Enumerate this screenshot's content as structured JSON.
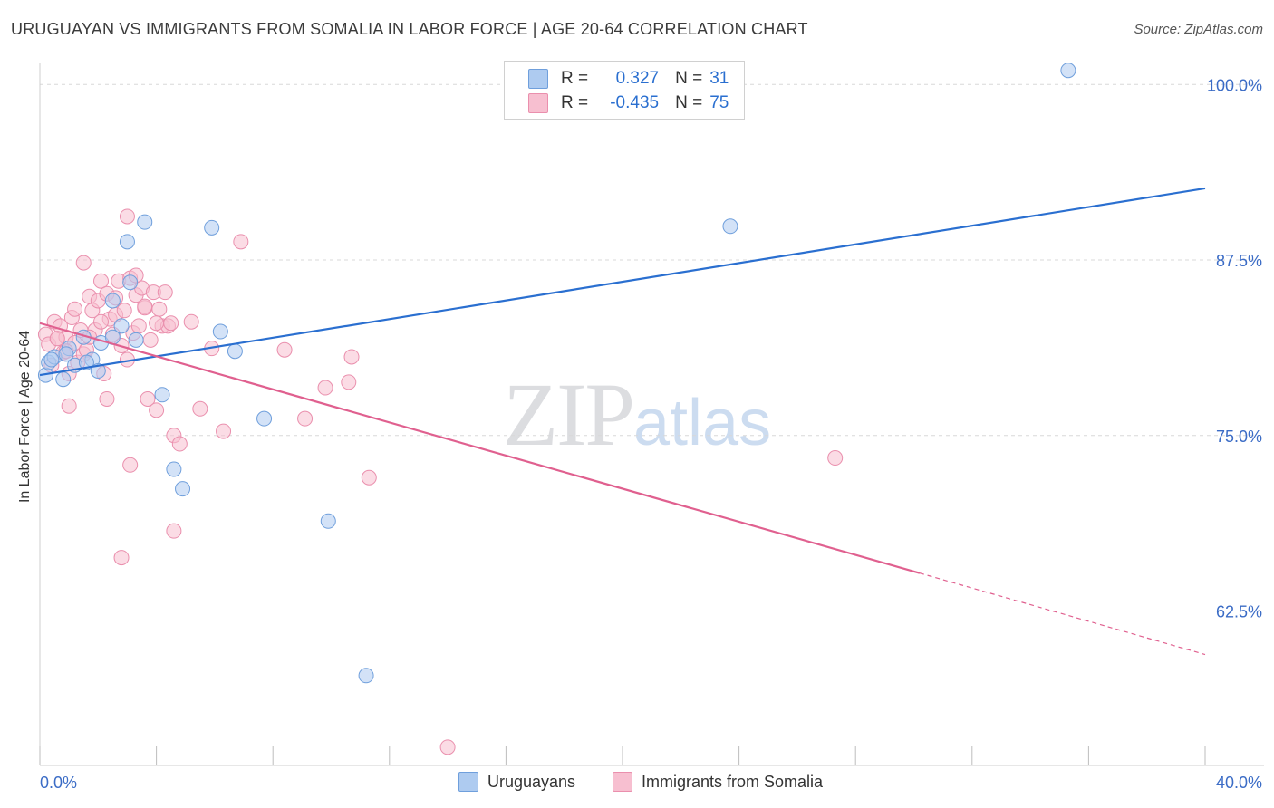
{
  "header": {
    "title": "URUGUAYAN VS IMMIGRANTS FROM SOMALIA IN LABOR FORCE | AGE 20-64 CORRELATION CHART",
    "source": "Source: ZipAtlas.com"
  },
  "watermark": {
    "zip": "ZIP",
    "atlas": "atlas"
  },
  "legend": {
    "r_label": "R =",
    "n_label": "N =",
    "rows": [
      {
        "r": "0.327",
        "n": "31"
      },
      {
        "r": "-0.435",
        "n": "75"
      }
    ]
  },
  "colors": {
    "blue_fill": "#aecbf0",
    "blue_stroke": "#6f9fdc",
    "blue_line": "#2a6fd0",
    "pink_fill": "#f7bfd0",
    "pink_stroke": "#ea8fad",
    "pink_line": "#e0608f",
    "axis_text": "#3b6cc6",
    "grid": "#d8d8d8"
  },
  "chart_data": {
    "type": "scatter",
    "title": "URUGUAYAN VS IMMIGRANTS FROM SOMALIA IN LABOR FORCE | AGE 20-64 CORRELATION CHART",
    "xlabel": "",
    "ylabel": "In Labor Force | Age 20-64",
    "xlim": [
      0,
      40
    ],
    "ylim": [
      51.5,
      101.5
    ],
    "x_tick_labels": [
      "0.0%",
      "40.0%"
    ],
    "y_ticks": [
      62.5,
      75.0,
      87.5,
      100.0
    ],
    "y_tick_labels": [
      "62.5%",
      "75.0%",
      "87.5%",
      "100.0%"
    ],
    "legend_position": "top-center",
    "series": [
      {
        "name": "Uruguayans",
        "r": 0.327,
        "n": 31,
        "points": [
          [
            0.2,
            79.3
          ],
          [
            0.3,
            80.2
          ],
          [
            0.5,
            80.6
          ],
          [
            0.8,
            79.0
          ],
          [
            1.0,
            81.2
          ],
          [
            1.2,
            80.0
          ],
          [
            1.5,
            82.0
          ],
          [
            1.8,
            80.4
          ],
          [
            2.0,
            79.6
          ],
          [
            2.1,
            81.6
          ],
          [
            2.5,
            82.0
          ],
          [
            2.5,
            84.6
          ],
          [
            2.8,
            82.8
          ],
          [
            3.1,
            85.9
          ],
          [
            3.0,
            88.8
          ],
          [
            3.6,
            90.2
          ],
          [
            3.3,
            81.8
          ],
          [
            4.2,
            77.9
          ],
          [
            4.6,
            72.6
          ],
          [
            4.9,
            71.2
          ],
          [
            5.9,
            89.8
          ],
          [
            6.2,
            82.4
          ],
          [
            6.7,
            81.0
          ],
          [
            7.7,
            76.2
          ],
          [
            9.9,
            68.9
          ],
          [
            11.2,
            57.9
          ],
          [
            23.7,
            89.9
          ],
          [
            35.3,
            101.0
          ],
          [
            0.4,
            80.4
          ],
          [
            0.9,
            80.8
          ],
          [
            1.6,
            80.2
          ]
        ]
      },
      {
        "name": "Immigrants from Somalia",
        "r": -0.435,
        "n": 75,
        "points": [
          [
            0.2,
            82.2
          ],
          [
            0.3,
            81.5
          ],
          [
            0.4,
            80.0
          ],
          [
            0.5,
            83.1
          ],
          [
            0.6,
            81.9
          ],
          [
            0.7,
            82.8
          ],
          [
            0.8,
            80.9
          ],
          [
            0.9,
            82.0
          ],
          [
            1.0,
            79.4
          ],
          [
            1.1,
            83.4
          ],
          [
            1.2,
            81.6
          ],
          [
            1.3,
            80.2
          ],
          [
            1.4,
            82.5
          ],
          [
            1.5,
            80.8
          ],
          [
            1.6,
            81.1
          ],
          [
            1.7,
            84.9
          ],
          [
            1.8,
            83.9
          ],
          [
            1.9,
            82.5
          ],
          [
            2.0,
            84.6
          ],
          [
            2.1,
            86.0
          ],
          [
            2.2,
            79.4
          ],
          [
            2.3,
            85.1
          ],
          [
            2.4,
            83.3
          ],
          [
            2.5,
            82.2
          ],
          [
            2.6,
            83.6
          ],
          [
            2.7,
            86.0
          ],
          [
            2.8,
            81.4
          ],
          [
            2.9,
            83.9
          ],
          [
            3.0,
            80.4
          ],
          [
            3.1,
            86.2
          ],
          [
            3.2,
            82.3
          ],
          [
            3.3,
            85.0
          ],
          [
            3.4,
            82.8
          ],
          [
            3.5,
            85.5
          ],
          [
            3.6,
            84.1
          ],
          [
            3.7,
            77.6
          ],
          [
            3.8,
            81.8
          ],
          [
            3.9,
            85.2
          ],
          [
            4.0,
            76.8
          ],
          [
            4.1,
            84.0
          ],
          [
            4.2,
            82.8
          ],
          [
            4.3,
            85.2
          ],
          [
            4.4,
            82.8
          ],
          [
            4.5,
            83.0
          ],
          [
            4.6,
            75.0
          ],
          [
            4.8,
            74.4
          ],
          [
            5.2,
            83.1
          ],
          [
            5.5,
            76.9
          ],
          [
            5.9,
            81.2
          ],
          [
            6.3,
            75.3
          ],
          [
            6.9,
            88.8
          ],
          [
            8.4,
            81.1
          ],
          [
            9.1,
            76.2
          ],
          [
            9.8,
            78.4
          ],
          [
            10.6,
            78.8
          ],
          [
            10.7,
            80.6
          ],
          [
            11.3,
            72.0
          ],
          [
            14.0,
            52.8
          ],
          [
            27.3,
            73.4
          ],
          [
            0.6,
            81.9
          ],
          [
            1.0,
            77.1
          ],
          [
            1.5,
            87.3
          ],
          [
            2.3,
            77.6
          ],
          [
            3.1,
            72.9
          ],
          [
            4.6,
            68.2
          ],
          [
            2.8,
            66.3
          ],
          [
            3.0,
            90.6
          ],
          [
            1.2,
            84.0
          ],
          [
            2.1,
            83.1
          ],
          [
            3.6,
            84.2
          ],
          [
            0.9,
            81.0
          ],
          [
            1.7,
            82.0
          ],
          [
            2.6,
            84.8
          ],
          [
            3.3,
            86.4
          ],
          [
            4.0,
            83.0
          ]
        ]
      }
    ],
    "trendlines": [
      {
        "series": "Uruguayans",
        "x": [
          0,
          40
        ],
        "y": [
          79.3,
          92.6
        ]
      },
      {
        "series": "Immigrants from Somalia",
        "x": [
          0,
          30.2
        ],
        "y": [
          83.0,
          65.2
        ],
        "dashed_to": [
          40,
          59.4
        ]
      }
    ]
  }
}
